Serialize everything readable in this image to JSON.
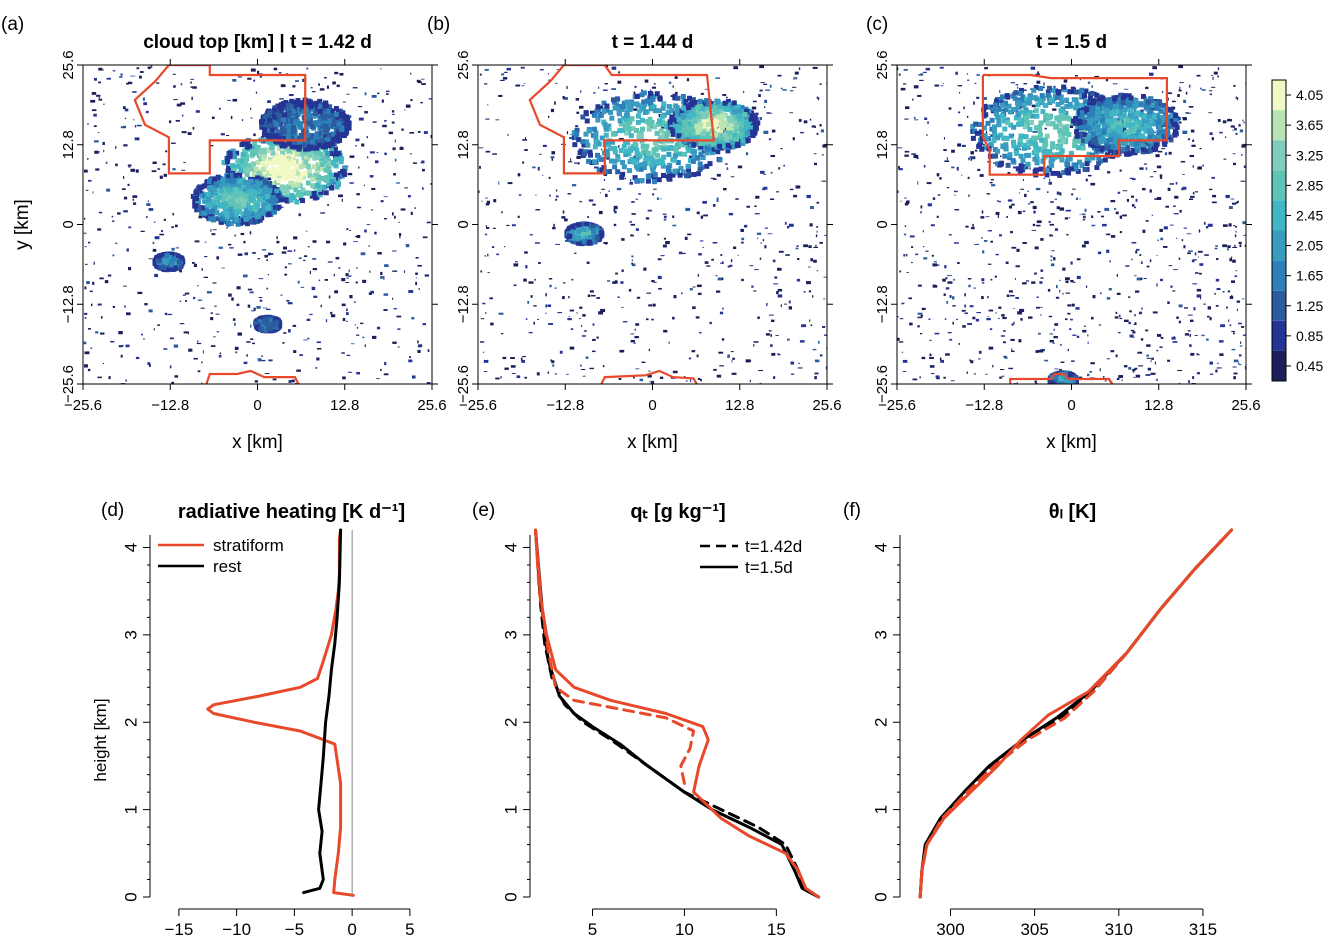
{
  "figure": {
    "panel_letters": [
      "(a)",
      "(b)",
      "(c)",
      "(d)",
      "(e)",
      "(f)"
    ]
  },
  "colors": {
    "stratiform": "#E8492B",
    "rest": "#000000",
    "colormap": [
      "#1B1F5A",
      "#253494",
      "#2C5C9E",
      "#2C7FB8",
      "#3A9BC1",
      "#41B6C4",
      "#5FC4B5",
      "#7FCDBB",
      "#B8E3B2",
      "#F2F8C4"
    ]
  },
  "chart_data": [
    {
      "type": "heatmap",
      "panel": "(a)",
      "title": "cloud top [km] | t = 1.42 d",
      "xlabel": "x [km]",
      "ylabel": "y [km]",
      "xlim": [
        -25.6,
        25.6
      ],
      "ylim": [
        -25.6,
        25.6
      ],
      "x_ticks": [
        "−25.6",
        "−12.8",
        "0",
        "12.8",
        "25.6"
      ],
      "y_ticks": [
        "−25.6",
        "−12.8",
        "0",
        "12.8",
        "25.6"
      ],
      "stratiform_outline_color": "#E8492B"
    },
    {
      "type": "heatmap",
      "panel": "(b)",
      "title": "t = 1.44 d",
      "xlabel": "x [km]",
      "ylabel": "",
      "xlim": [
        -25.6,
        25.6
      ],
      "ylim": [
        -25.6,
        25.6
      ],
      "x_ticks": [
        "−25.6",
        "−12.8",
        "0",
        "12.8",
        "25.6"
      ],
      "y_ticks": [
        "−25.6",
        "−12.8",
        "0",
        "12.8",
        "25.6"
      ]
    },
    {
      "type": "heatmap",
      "panel": "(c)",
      "title": "t = 1.5 d",
      "xlabel": "x [km]",
      "ylabel": "",
      "xlim": [
        -25.6,
        25.6
      ],
      "ylim": [
        -25.6,
        25.6
      ],
      "x_ticks": [
        "−25.6",
        "−12.8",
        "0",
        "12.8",
        "25.6"
      ],
      "y_ticks": [
        "−25.6",
        "−12.8",
        "0",
        "12.8",
        "25.6"
      ],
      "colorbar_levels": [
        "0.45",
        "0.85",
        "1.25",
        "1.65",
        "2.05",
        "2.45",
        "2.85",
        "3.25",
        "3.65",
        "4.05"
      ]
    },
    {
      "type": "line",
      "panel": "(d)",
      "title": "radiative heating [K d⁻¹]",
      "xlabel": "",
      "ylabel": "height [km]",
      "xlim": [
        -17.5,
        7
      ],
      "ylim": [
        0,
        4.2
      ],
      "x_ticks": [
        "−15",
        "−10",
        "−5",
        "0",
        "5"
      ],
      "y_ticks": [
        "0",
        "1",
        "2",
        "3",
        "4"
      ],
      "legend": [
        "stratiform",
        "rest"
      ],
      "series": [
        {
          "name": "stratiform",
          "x": [
            0.1,
            -1.6,
            -1.5,
            -1.2,
            -1.0,
            -1.0,
            -1.0,
            -1.5,
            -2.5,
            -4.5,
            -8.5,
            -12.0,
            -12.5,
            -12.0,
            -8.0,
            -4.5,
            -3.0,
            -2.5,
            -1.8,
            -1.4,
            -1.2,
            -1.1,
            -1.1,
            -1.1,
            -1.0
          ],
          "y": [
            0.02,
            0.05,
            0.2,
            0.5,
            0.8,
            1.0,
            1.3,
            1.75,
            1.8,
            1.9,
            2.0,
            2.1,
            2.15,
            2.2,
            2.3,
            2.4,
            2.5,
            2.7,
            3.0,
            3.3,
            3.5,
            3.7,
            3.9,
            4.1,
            4.2
          ]
        },
        {
          "name": "rest",
          "x": [
            -4.2,
            -2.8,
            -2.5,
            -2.8,
            -2.6,
            -2.9,
            -2.7,
            -2.5,
            -2.3,
            -2.0,
            -1.8,
            -1.5,
            -1.3,
            -1.1,
            -1.0
          ],
          "y": [
            0.05,
            0.1,
            0.2,
            0.5,
            0.75,
            1.0,
            1.3,
            1.6,
            2.0,
            2.3,
            2.6,
            2.9,
            3.2,
            3.6,
            4.2
          ]
        }
      ]
    },
    {
      "type": "line",
      "panel": "(e)",
      "title": "qₜ [g kg⁻¹]",
      "xlabel": "",
      "ylabel": "",
      "xlim": [
        1.6,
        17.7
      ],
      "ylim": [
        0,
        4.2
      ],
      "x_ticks": [
        "5",
        "10",
        "15"
      ],
      "y_ticks": [
        "0",
        "1",
        "2",
        "3",
        "4"
      ],
      "legend": [
        "t=1.42d",
        "t=1.5d"
      ],
      "series": [
        {
          "name": "t=1.42d",
          "dash": true,
          "color": "#000000",
          "x": [
            17.3,
            16.5,
            16.2,
            15.5,
            14.0,
            12.0,
            10.0,
            8.0,
            6.0,
            4.5,
            3.5,
            2.8,
            2.4,
            2.2,
            1.9
          ],
          "y": [
            0.0,
            0.1,
            0.3,
            0.6,
            0.8,
            1.0,
            1.2,
            1.5,
            1.8,
            2.0,
            2.2,
            2.5,
            2.9,
            3.3,
            4.2
          ]
        },
        {
          "name": "t=1.5d",
          "dash": false,
          "color": "#000000",
          "x": [
            17.3,
            16.4,
            16.0,
            15.3,
            13.5,
            11.5,
            10.0,
            8.0,
            6.5,
            5.0,
            4.0,
            3.2,
            2.6,
            2.3,
            1.9
          ],
          "y": [
            0.0,
            0.1,
            0.3,
            0.6,
            0.8,
            1.0,
            1.2,
            1.5,
            1.75,
            1.95,
            2.1,
            2.3,
            2.7,
            3.2,
            4.2
          ]
        },
        {
          "name": "",
          "dash": true,
          "color": "#E8492B",
          "x": [
            10.0,
            9.8,
            10.3,
            10.5,
            9.0,
            6.5,
            4.0,
            3.0,
            2.6,
            2.4,
            2.1,
            1.9
          ],
          "y": [
            1.3,
            1.5,
            1.7,
            1.9,
            2.05,
            2.15,
            2.25,
            2.4,
            2.8,
            3.1,
            3.5,
            4.2
          ]
        },
        {
          "name": "",
          "dash": false,
          "color": "#E8492B",
          "x": [
            17.3,
            16.6,
            16.2,
            15.5,
            13.5,
            12.0,
            10.5,
            10.8,
            11.3,
            11.0,
            9.0,
            6.0,
            4.0,
            3.0,
            2.5,
            2.2,
            1.9
          ],
          "y": [
            0.0,
            0.1,
            0.3,
            0.5,
            0.7,
            0.9,
            1.2,
            1.5,
            1.8,
            1.95,
            2.1,
            2.25,
            2.4,
            2.6,
            3.0,
            3.4,
            4.2
          ]
        }
      ]
    },
    {
      "type": "line",
      "panel": "(f)",
      "title": "θₗ [K]",
      "xlabel": "",
      "ylabel": "",
      "xlim": [
        297,
        317.5
      ],
      "ylim": [
        0,
        4.2
      ],
      "x_ticks": [
        "300",
        "305",
        "310",
        "315"
      ],
      "y_ticks": [
        "0",
        "1",
        "2",
        "3",
        "4"
      ],
      "series": [
        {
          "name": "",
          "dash": true,
          "color": "#000000",
          "x": [
            298.2,
            298.3,
            298.6,
            299.5,
            301.0,
            302.5,
            304.5,
            306.5,
            308.5,
            310.5,
            312.5,
            314.5,
            316.7
          ],
          "y": [
            0.0,
            0.3,
            0.6,
            0.9,
            1.2,
            1.5,
            1.8,
            2.05,
            2.35,
            2.8,
            3.3,
            3.75,
            4.2
          ]
        },
        {
          "name": "",
          "dash": false,
          "color": "#000000",
          "x": [
            298.2,
            298.3,
            298.5,
            299.4,
            300.8,
            302.3,
            304.3,
            306.3,
            308.3,
            310.5,
            312.5,
            314.5,
            316.7
          ],
          "y": [
            0.0,
            0.3,
            0.6,
            0.9,
            1.2,
            1.5,
            1.8,
            2.05,
            2.35,
            2.8,
            3.3,
            3.75,
            4.2
          ]
        },
        {
          "name": "",
          "dash": true,
          "color": "#E8492B",
          "x": [
            298.2,
            298.3,
            298.6,
            299.5,
            301.0,
            302.6,
            304.6,
            306.8,
            308.5,
            310.5,
            312.5,
            314.5,
            316.7
          ],
          "y": [
            0.0,
            0.3,
            0.6,
            0.9,
            1.2,
            1.5,
            1.8,
            2.05,
            2.35,
            2.8,
            3.3,
            3.75,
            4.2
          ]
        },
        {
          "name": "",
          "dash": false,
          "color": "#E8492B",
          "x": [
            298.2,
            298.3,
            298.6,
            299.6,
            301.2,
            302.8,
            304.2,
            305.8,
            308.2,
            310.5,
            312.5,
            314.5,
            316.7
          ],
          "y": [
            0.0,
            0.3,
            0.6,
            0.9,
            1.2,
            1.5,
            1.8,
            2.08,
            2.35,
            2.8,
            3.3,
            3.75,
            4.2
          ]
        }
      ]
    }
  ]
}
